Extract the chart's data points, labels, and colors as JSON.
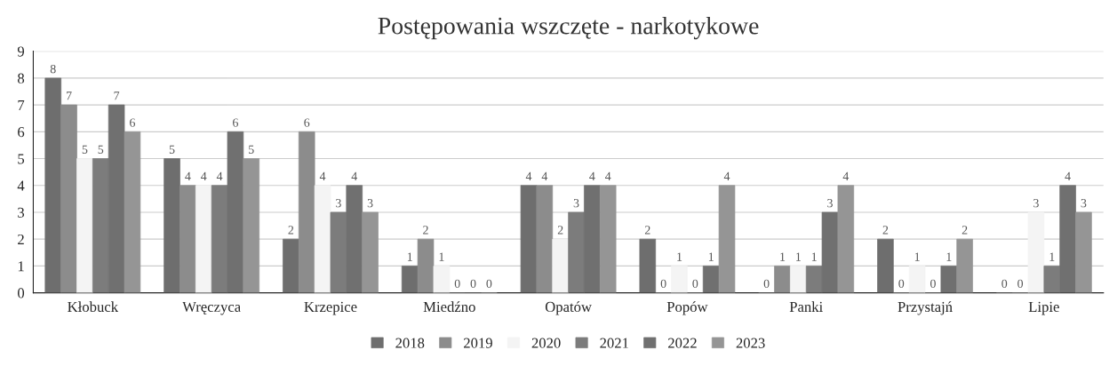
{
  "chart_data": {
    "type": "bar",
    "title": "Postępowania wszczęte - narkotykowe",
    "categories": [
      "Kłobuck",
      "Wręczyca",
      "Krzepice",
      "Miedźno",
      "Opatów",
      "Popów",
      "Panki",
      "Przystajń",
      "Lipie"
    ],
    "series": [
      {
        "name": "2018",
        "color": "#6e6e6e",
        "values": [
          8,
          5,
          2,
          1,
          4,
          2,
          0,
          2,
          0
        ]
      },
      {
        "name": "2019",
        "color": "#8c8c8c",
        "values": [
          7,
          4,
          6,
          2,
          4,
          0,
          1,
          0,
          0
        ]
      },
      {
        "name": "2020",
        "color": "#f4f4f4",
        "values": [
          5,
          4,
          4,
          1,
          2,
          1,
          1,
          1,
          3
        ]
      },
      {
        "name": "2021",
        "color": "#7c7c7c",
        "values": [
          5,
          4,
          3,
          0,
          3,
          0,
          1,
          0,
          1
        ]
      },
      {
        "name": "2022",
        "color": "#707070",
        "values": [
          7,
          6,
          4,
          0,
          4,
          1,
          3,
          1,
          4
        ]
      },
      {
        "name": "2023",
        "color": "#959595",
        "values": [
          6,
          5,
          3,
          0,
          4,
          4,
          4,
          2,
          3
        ]
      }
    ],
    "ylim": [
      0,
      9
    ],
    "yticks": [
      0,
      1,
      2,
      3,
      4,
      5,
      6,
      7,
      8,
      9
    ],
    "grid": "y",
    "legend": "bottom",
    "data_labels": true
  }
}
